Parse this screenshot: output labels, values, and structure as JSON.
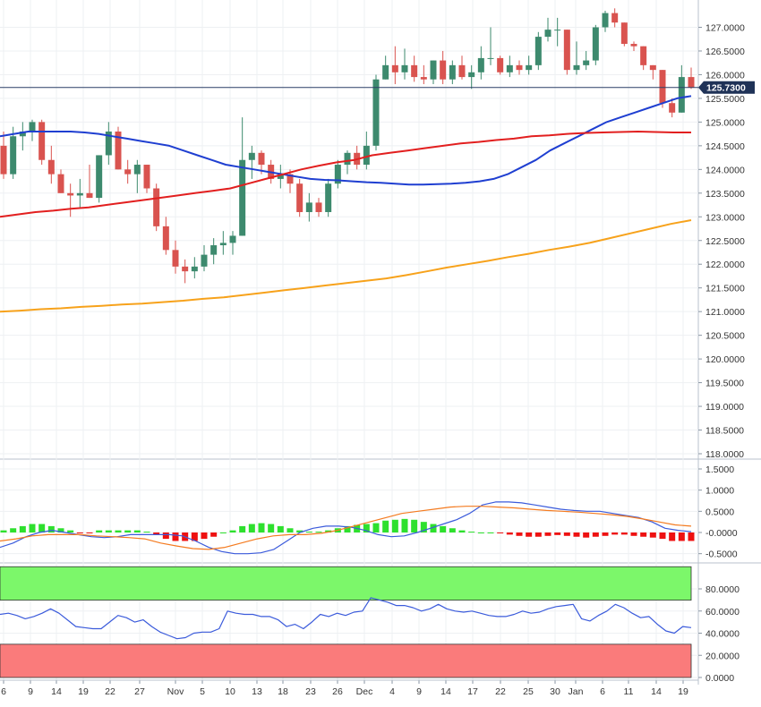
{
  "chart_data": [
    {
      "panel": "price",
      "type": "candlestick",
      "ylim": [
        118.0,
        127.5
      ],
      "yticks": [
        "127.0000",
        "126.5000",
        "126.0000",
        "125.5000",
        "125.0000",
        "124.5000",
        "124.0000",
        "123.5000",
        "123.0000",
        "122.5000",
        "122.0000",
        "121.5000",
        "121.0000",
        "120.5000",
        "120.0000",
        "119.5000",
        "119.0000",
        "118.5000",
        "118.0000"
      ],
      "current_price_label": "125.7300",
      "current_price": 125.73,
      "colors": {
        "up": "#3d8a6e",
        "down": "#d9534f",
        "sma_blue": "#1f3fd1",
        "sma_red": "#e21f1f",
        "sma_orange": "#f7a21b",
        "price_line": "#2a3f66"
      },
      "candles": [
        {
          "o": 124.5,
          "h": 124.8,
          "l": 123.8,
          "c": 123.9
        },
        {
          "o": 123.9,
          "h": 124.9,
          "l": 123.8,
          "c": 124.7
        },
        {
          "o": 124.7,
          "h": 125.0,
          "l": 124.4,
          "c": 124.8
        },
        {
          "o": 124.8,
          "h": 125.05,
          "l": 124.6,
          "c": 125.0
        },
        {
          "o": 125.0,
          "h": 125.05,
          "l": 124.1,
          "c": 124.2
        },
        {
          "o": 124.2,
          "h": 124.5,
          "l": 123.7,
          "c": 123.9
        },
        {
          "o": 123.9,
          "h": 124.0,
          "l": 123.5,
          "c": 123.5
        },
        {
          "o": 123.5,
          "h": 123.7,
          "l": 123.0,
          "c": 123.45
        },
        {
          "o": 123.45,
          "h": 123.8,
          "l": 123.2,
          "c": 123.5
        },
        {
          "o": 123.5,
          "h": 124.1,
          "l": 123.4,
          "c": 123.4
        },
        {
          "o": 123.4,
          "h": 124.3,
          "l": 123.3,
          "c": 124.3
        },
        {
          "o": 124.3,
          "h": 125.0,
          "l": 124.1,
          "c": 124.8
        },
        {
          "o": 124.8,
          "h": 124.9,
          "l": 124.0,
          "c": 124.0
        },
        {
          "o": 124.0,
          "h": 124.2,
          "l": 123.7,
          "c": 123.9
        },
        {
          "o": 123.9,
          "h": 124.2,
          "l": 123.5,
          "c": 124.1
        },
        {
          "o": 124.1,
          "h": 124.1,
          "l": 123.5,
          "c": 123.6
        },
        {
          "o": 123.6,
          "h": 123.7,
          "l": 122.7,
          "c": 122.8
        },
        {
          "o": 122.8,
          "h": 123.0,
          "l": 122.2,
          "c": 122.3
        },
        {
          "o": 122.3,
          "h": 122.5,
          "l": 121.8,
          "c": 121.95
        },
        {
          "o": 121.95,
          "h": 122.1,
          "l": 121.6,
          "c": 121.85
        },
        {
          "o": 121.85,
          "h": 122.15,
          "l": 121.7,
          "c": 121.95
        },
        {
          "o": 121.95,
          "h": 122.4,
          "l": 121.85,
          "c": 122.2
        },
        {
          "o": 122.2,
          "h": 122.55,
          "l": 122.0,
          "c": 122.4
        },
        {
          "o": 122.4,
          "h": 122.7,
          "l": 122.2,
          "c": 122.45
        },
        {
          "o": 122.45,
          "h": 122.7,
          "l": 122.2,
          "c": 122.6
        },
        {
          "o": 122.6,
          "h": 125.1,
          "l": 122.6,
          "c": 124.2
        },
        {
          "o": 124.2,
          "h": 124.5,
          "l": 123.8,
          "c": 124.35
        },
        {
          "o": 124.35,
          "h": 124.4,
          "l": 123.9,
          "c": 124.1
        },
        {
          "o": 124.1,
          "h": 124.2,
          "l": 123.7,
          "c": 123.8
        },
        {
          "o": 123.8,
          "h": 124.1,
          "l": 123.6,
          "c": 123.9
        },
        {
          "o": 123.9,
          "h": 124.0,
          "l": 123.5,
          "c": 123.7
        },
        {
          "o": 123.7,
          "h": 123.8,
          "l": 123.0,
          "c": 123.1
        },
        {
          "o": 123.1,
          "h": 123.5,
          "l": 122.9,
          "c": 123.3
        },
        {
          "o": 123.3,
          "h": 123.4,
          "l": 123.0,
          "c": 123.1
        },
        {
          "o": 123.1,
          "h": 123.8,
          "l": 123.0,
          "c": 123.7
        },
        {
          "o": 123.7,
          "h": 124.2,
          "l": 123.6,
          "c": 124.1
        },
        {
          "o": 124.1,
          "h": 124.4,
          "l": 123.9,
          "c": 124.35
        },
        {
          "o": 124.35,
          "h": 124.5,
          "l": 124.0,
          "c": 124.1
        },
        {
          "o": 124.1,
          "h": 124.8,
          "l": 124.0,
          "c": 124.5
        },
        {
          "o": 124.5,
          "h": 126.0,
          "l": 124.4,
          "c": 125.9
        },
        {
          "o": 125.9,
          "h": 126.4,
          "l": 125.9,
          "c": 126.2
        },
        {
          "o": 126.2,
          "h": 126.6,
          "l": 125.8,
          "c": 126.05
        },
        {
          "o": 126.05,
          "h": 126.55,
          "l": 125.9,
          "c": 126.2
        },
        {
          "o": 126.2,
          "h": 126.4,
          "l": 125.85,
          "c": 125.95
        },
        {
          "o": 125.95,
          "h": 126.2,
          "l": 125.8,
          "c": 125.9
        },
        {
          "o": 125.9,
          "h": 126.3,
          "l": 125.8,
          "c": 126.3
        },
        {
          "o": 126.3,
          "h": 126.5,
          "l": 125.8,
          "c": 125.9
        },
        {
          "o": 125.9,
          "h": 126.3,
          "l": 125.8,
          "c": 126.2
        },
        {
          "o": 126.2,
          "h": 126.4,
          "l": 125.9,
          "c": 125.95
        },
        {
          "o": 125.95,
          "h": 126.2,
          "l": 125.7,
          "c": 126.05
        },
        {
          "o": 126.05,
          "h": 126.6,
          "l": 125.9,
          "c": 126.35
        },
        {
          "o": 126.35,
          "h": 127.0,
          "l": 126.2,
          "c": 126.35
        },
        {
          "o": 126.35,
          "h": 126.4,
          "l": 126.0,
          "c": 126.05
        },
        {
          "o": 126.05,
          "h": 126.4,
          "l": 125.95,
          "c": 126.2
        },
        {
          "o": 126.2,
          "h": 126.3,
          "l": 126.0,
          "c": 126.1
        },
        {
          "o": 126.1,
          "h": 126.4,
          "l": 126.0,
          "c": 126.2
        },
        {
          "o": 126.2,
          "h": 126.9,
          "l": 126.1,
          "c": 126.8
        },
        {
          "o": 126.8,
          "h": 127.2,
          "l": 126.7,
          "c": 126.95
        },
        {
          "o": 126.95,
          "h": 127.2,
          "l": 126.6,
          "c": 126.95
        },
        {
          "o": 126.95,
          "h": 126.95,
          "l": 126.0,
          "c": 126.1
        },
        {
          "o": 126.1,
          "h": 126.7,
          "l": 126.0,
          "c": 126.2
        },
        {
          "o": 126.2,
          "h": 126.5,
          "l": 126.1,
          "c": 126.3
        },
        {
          "o": 126.3,
          "h": 127.05,
          "l": 126.2,
          "c": 127.0
        },
        {
          "o": 127.0,
          "h": 127.35,
          "l": 126.9,
          "c": 127.3
        },
        {
          "o": 127.3,
          "h": 127.4,
          "l": 127.0,
          "c": 127.1
        },
        {
          "o": 127.1,
          "h": 127.1,
          "l": 126.6,
          "c": 126.65
        },
        {
          "o": 126.65,
          "h": 126.7,
          "l": 126.5,
          "c": 126.6
        },
        {
          "o": 126.6,
          "h": 126.6,
          "l": 126.1,
          "c": 126.2
        },
        {
          "o": 126.2,
          "h": 126.2,
          "l": 125.9,
          "c": 126.1
        },
        {
          "o": 126.1,
          "h": 126.1,
          "l": 125.3,
          "c": 125.4
        },
        {
          "o": 125.4,
          "h": 125.5,
          "l": 125.1,
          "c": 125.2
        },
        {
          "o": 125.2,
          "h": 126.2,
          "l": 125.2,
          "c": 125.95
        },
        {
          "o": 125.95,
          "h": 126.15,
          "l": 125.7,
          "c": 125.73
        }
      ],
      "sma_blue": [
        124.7,
        124.75,
        124.8,
        124.8,
        124.8,
        124.8,
        124.78,
        124.75,
        124.7,
        124.65,
        124.6,
        124.55,
        124.5,
        124.4,
        124.3,
        124.2,
        124.1,
        124.05,
        124.0,
        123.95,
        123.9,
        123.85,
        123.8,
        123.78,
        123.77,
        123.75,
        123.73,
        123.72,
        123.7,
        123.68,
        123.68,
        123.69,
        123.7,
        123.72,
        123.75,
        123.8,
        123.9,
        124.05,
        124.2,
        124.4,
        124.55,
        124.7,
        124.85,
        125.0,
        125.1,
        125.2,
        125.3,
        125.4,
        125.5,
        125.55
      ],
      "sma_red": [
        123.0,
        123.05,
        123.1,
        123.13,
        123.17,
        123.2,
        123.25,
        123.3,
        123.35,
        123.4,
        123.45,
        123.5,
        123.55,
        123.6,
        123.7,
        123.8,
        123.9,
        124.0,
        124.08,
        124.15,
        124.2,
        124.3,
        124.35,
        124.4,
        124.45,
        124.5,
        124.55,
        124.58,
        124.62,
        124.65,
        124.7,
        124.72,
        124.75,
        124.77,
        124.78,
        124.79,
        124.8,
        124.79,
        124.78,
        124.78
      ],
      "sma_orange": [
        121.0,
        121.02,
        121.05,
        121.07,
        121.1,
        121.12,
        121.15,
        121.17,
        121.2,
        121.23,
        121.27,
        121.3,
        121.35,
        121.4,
        121.45,
        121.5,
        121.55,
        121.6,
        121.65,
        121.7,
        121.77,
        121.85,
        121.93,
        122.0,
        122.07,
        122.15,
        122.22,
        122.3,
        122.37,
        122.45,
        122.55,
        122.65,
        122.75,
        122.85,
        122.93
      ]
    },
    {
      "panel": "macd",
      "type": "histogram+line",
      "ylim": [
        -0.6,
        1.6
      ],
      "yticks": [
        "1.5000",
        "1.0000",
        "0.5000",
        "-0.0000",
        "-0.5000"
      ],
      "histogram": [
        0.05,
        0.1,
        0.15,
        0.2,
        0.2,
        0.15,
        0.1,
        0.05,
        -0.02,
        -0.02,
        0.05,
        0.05,
        0.05,
        0.05,
        0.05,
        0.02,
        -0.05,
        -0.15,
        -0.2,
        -0.2,
        -0.2,
        -0.15,
        -0.1,
        0.0,
        0.05,
        0.15,
        0.2,
        0.22,
        0.2,
        0.15,
        0.1,
        0.05,
        0.02,
        0.02,
        0.05,
        0.1,
        0.15,
        0.18,
        0.2,
        0.22,
        0.28,
        0.3,
        0.32,
        0.3,
        0.25,
        0.2,
        0.15,
        0.1,
        0.05,
        0.02,
        0.0,
        0.0,
        -0.02,
        -0.05,
        -0.08,
        -0.1,
        -0.1,
        -0.08,
        -0.06,
        -0.08,
        -0.1,
        -0.12,
        -0.1,
        -0.08,
        -0.05,
        -0.05,
        -0.08,
        -0.1,
        -0.12,
        -0.15,
        -0.2,
        -0.2,
        -0.2
      ],
      "macd_line": [
        -0.35,
        -0.25,
        -0.1,
        0.0,
        0.05,
        0.0,
        -0.05,
        -0.1,
        -0.12,
        -0.1,
        -0.05,
        -0.05,
        -0.05,
        -0.05,
        -0.08,
        -0.2,
        -0.35,
        -0.45,
        -0.5,
        -0.5,
        -0.48,
        -0.4,
        -0.2,
        0.0,
        0.1,
        0.15,
        0.15,
        0.12,
        0.05,
        -0.05,
        -0.1,
        -0.08,
        0.0,
        0.1,
        0.2,
        0.3,
        0.45,
        0.65,
        0.72,
        0.72,
        0.7,
        0.65,
        0.6,
        0.55,
        0.52,
        0.5,
        0.5,
        0.45,
        0.4,
        0.35,
        0.25,
        0.1,
        0.05,
        0.02
      ],
      "signal_line": [
        -0.2,
        -0.15,
        -0.08,
        -0.05,
        -0.05,
        -0.05,
        -0.08,
        -0.1,
        -0.12,
        -0.15,
        -0.25,
        -0.32,
        -0.38,
        -0.4,
        -0.35,
        -0.25,
        -0.15,
        -0.08,
        -0.05,
        -0.05,
        -0.02,
        0.05,
        0.15,
        0.25,
        0.35,
        0.45,
        0.5,
        0.55,
        0.6,
        0.62,
        0.62,
        0.6,
        0.58,
        0.55,
        0.52,
        0.5,
        0.48,
        0.45,
        0.42,
        0.38,
        0.32,
        0.25,
        0.18,
        0.15
      ]
    },
    {
      "panel": "rsi",
      "type": "line",
      "ylim": [
        0,
        100
      ],
      "yticks": [
        "80.0000",
        "60.0000",
        "40.0000",
        "20.0000",
        "0.0000"
      ],
      "overbought_zone": [
        70,
        100
      ],
      "oversold_zone": [
        0,
        30
      ],
      "values": [
        57,
        58,
        56,
        53,
        55,
        58,
        62,
        58,
        52,
        46,
        45,
        44,
        44,
        50,
        56,
        54,
        50,
        52,
        46,
        41,
        38,
        35,
        36,
        40,
        41,
        41,
        44,
        60,
        58,
        57,
        57,
        55,
        55,
        52,
        46,
        48,
        44,
        50,
        57,
        55,
        58,
        56,
        59,
        60,
        72,
        70,
        68,
        65,
        65,
        63,
        60,
        62,
        66,
        62,
        60,
        59,
        60,
        58,
        56,
        55,
        55,
        57,
        60,
        58,
        59,
        62,
        64,
        65,
        66,
        53,
        51,
        56,
        60,
        66,
        63,
        58,
        54,
        55,
        48,
        42,
        40,
        46,
        45
      ],
      "colors": {
        "line": "#3b5bdb",
        "overbought": "#7cf76a",
        "oversold": "#fa7b7b"
      }
    }
  ],
  "x_axis": {
    "tick_labels": [
      "6",
      "9",
      "14",
      "19",
      "22",
      "27",
      "Nov",
      "5",
      "10",
      "13",
      "18",
      "23",
      "26",
      "Dec",
      "4",
      "9",
      "14",
      "17",
      "22",
      "25",
      "30",
      "Jan",
      "6",
      "11",
      "14",
      "19"
    ]
  }
}
